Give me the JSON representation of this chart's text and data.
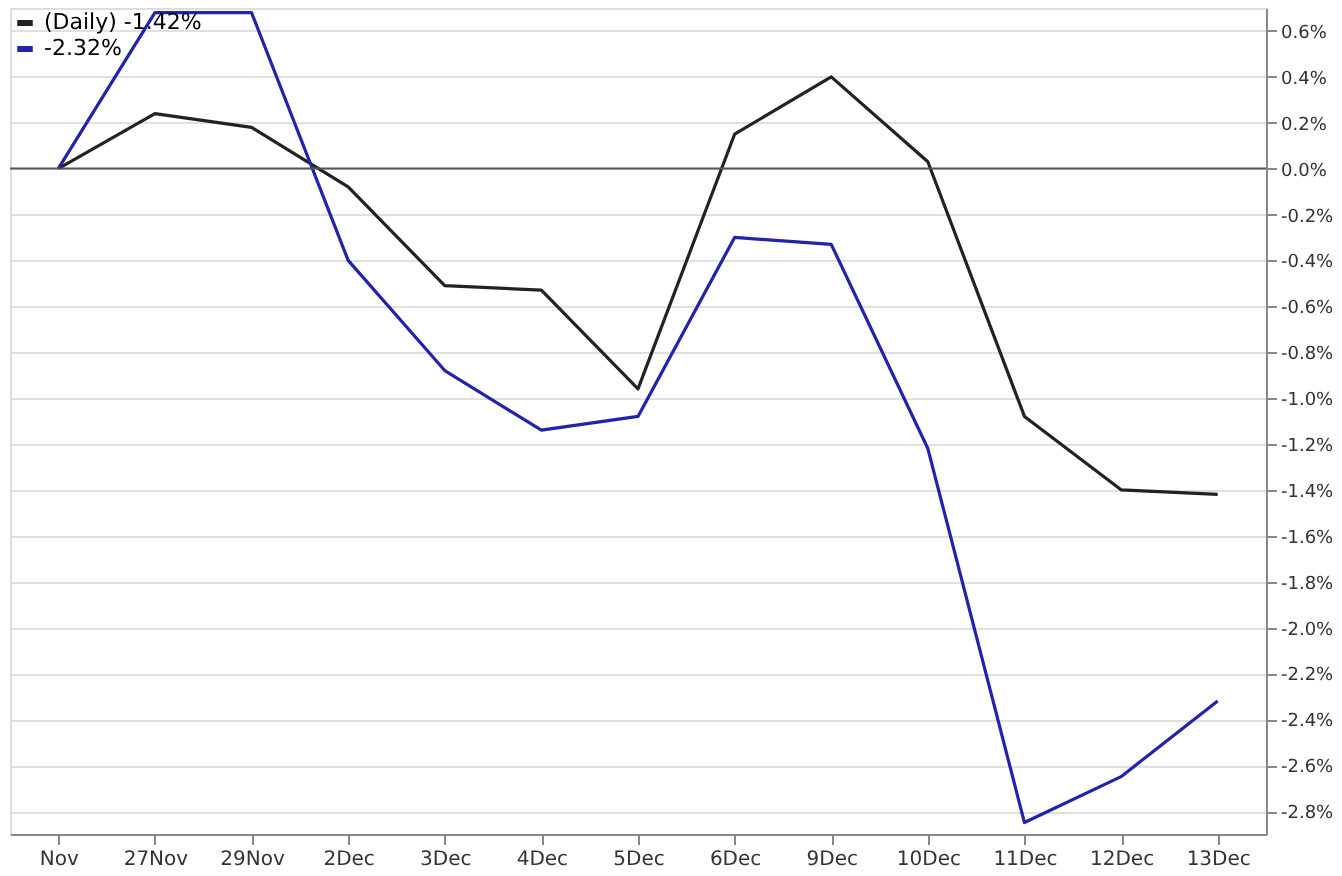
{
  "chart_data": {
    "type": "line",
    "categories": [
      "Nov",
      "27Nov",
      "29Nov",
      "2Dec",
      "3Dec",
      "4Dec",
      "5Dec",
      "6Dec",
      "9Dec",
      "10Dec",
      "11Dec",
      "12Dec",
      "13Dec"
    ],
    "series": [
      {
        "name": "(Daily) -1.42%",
        "color": "#222222",
        "values": [
          0,
          0.24,
          0.18,
          -0.08,
          -0.51,
          -0.53,
          -0.96,
          0.15,
          0.4,
          0.03,
          -1.08,
          -1.4,
          -1.42
        ]
      },
      {
        "name": "-2.32%",
        "color": "#2222aa",
        "values": [
          0,
          0.68,
          0.68,
          -0.4,
          -0.88,
          -1.14,
          -1.08,
          -0.3,
          -0.33,
          -1.22,
          -2.85,
          -2.65,
          -2.32
        ]
      }
    ],
    "ylim": [
      -2.9,
      0.7
    ],
    "yticks": [
      {
        "value": -2.8,
        "label": "-2.8%"
      },
      {
        "value": -2.6,
        "label": "-2.6%"
      },
      {
        "value": -2.4,
        "label": "-2.4%"
      },
      {
        "value": -2.2,
        "label": "-2.2%"
      },
      {
        "value": -2.0,
        "label": "-2.0%"
      },
      {
        "value": -1.8,
        "label": "-1.8%"
      },
      {
        "value": -1.6,
        "label": "-1.6%"
      },
      {
        "value": -1.4,
        "label": "-1.4%"
      },
      {
        "value": -1.2,
        "label": "-1.2%"
      },
      {
        "value": -1.0,
        "label": "-1.0%"
      },
      {
        "value": -0.8,
        "label": "-0.8%"
      },
      {
        "value": -0.6,
        "label": "-0.6%"
      },
      {
        "value": -0.4,
        "label": "-0.4%"
      },
      {
        "value": -0.2,
        "label": "-0.2%"
      },
      {
        "value": 0.0,
        "label": "0.0%"
      },
      {
        "value": 0.2,
        "label": "0.2%"
      },
      {
        "value": 0.4,
        "label": "0.4%"
      },
      {
        "value": 0.6,
        "label": "0.6%"
      }
    ],
    "ref_lines": [
      {
        "axis": "y",
        "value": 0,
        "color": "#555555"
      }
    ],
    "grid": "y",
    "legend": "top left",
    "marker": "none",
    "line_style": "solid"
  }
}
